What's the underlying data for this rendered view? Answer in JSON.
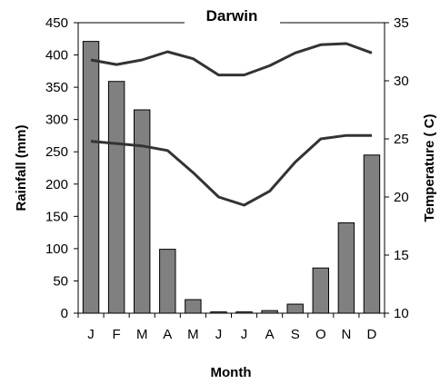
{
  "chart_data": {
    "type": "bar",
    "title": "Darwin",
    "xlabel": "Month",
    "ylabel": "Rainfall (mm)",
    "y2label": "Temperature ( C)",
    "categories": [
      "J",
      "F",
      "M",
      "A",
      "M",
      "J",
      "J",
      "A",
      "S",
      "O",
      "N",
      "D"
    ],
    "ylim": [
      0,
      450
    ],
    "yticks": [
      0,
      50,
      100,
      150,
      200,
      250,
      300,
      350,
      400,
      450
    ],
    "y2lim": [
      10,
      35
    ],
    "y2ticks": [
      10,
      15,
      20,
      25,
      30,
      35
    ],
    "series": [
      {
        "type": "bar",
        "axis": "left",
        "values": [
          421,
          359,
          315,
          99,
          21,
          2,
          2,
          4,
          14,
          70,
          140,
          245
        ]
      },
      {
        "type": "line",
        "axis": "right",
        "values": [
          31.8,
          31.4,
          31.8,
          32.5,
          31.9,
          30.5,
          30.5,
          31.3,
          32.4,
          33.1,
          33.2,
          32.4
        ]
      },
      {
        "type": "line",
        "axis": "right",
        "values": [
          24.8,
          24.6,
          24.4,
          24.0,
          22.1,
          20.0,
          19.3,
          20.5,
          23.0,
          25.0,
          25.3,
          25.3
        ]
      }
    ],
    "colors": {
      "bar_fill": "#808080",
      "bar_stroke": "#000000",
      "line": "#333333"
    },
    "grid": false,
    "legend": "none"
  }
}
